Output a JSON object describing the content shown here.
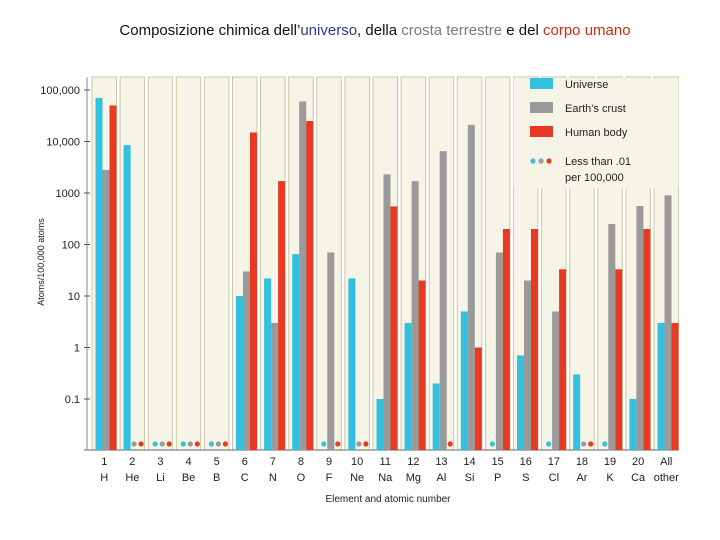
{
  "title": {
    "part1": "Composizione chimica dell’",
    "universe": "universo",
    "part2": ", della ",
    "crust": "crosta terrestre",
    "part3": " e del ",
    "body": "corpo umano"
  },
  "chart_data": {
    "type": "bar",
    "scale": "log",
    "ylabel": "Atoms/100,000 atoms",
    "xlabel": "Element and atomic number",
    "yticks": [
      {
        "value": 100000,
        "label": "100,000"
      },
      {
        "value": 10000,
        "label": "10,000"
      },
      {
        "value": 1000,
        "label": "1000"
      },
      {
        "value": 100,
        "label": "100"
      },
      {
        "value": 10,
        "label": "10"
      },
      {
        "value": 1,
        "label": "1"
      },
      {
        "value": 0.1,
        "label": "0.1"
      }
    ],
    "categories": [
      {
        "num": "1",
        "sym": "H"
      },
      {
        "num": "2",
        "sym": "He"
      },
      {
        "num": "3",
        "sym": "Li"
      },
      {
        "num": "4",
        "sym": "Be"
      },
      {
        "num": "5",
        "sym": "B"
      },
      {
        "num": "6",
        "sym": "C"
      },
      {
        "num": "7",
        "sym": "N"
      },
      {
        "num": "8",
        "sym": "O"
      },
      {
        "num": "9",
        "sym": "F"
      },
      {
        "num": "10",
        "sym": "Ne"
      },
      {
        "num": "11",
        "sym": "Na"
      },
      {
        "num": "12",
        "sym": "Mg"
      },
      {
        "num": "13",
        "sym": "Al"
      },
      {
        "num": "14",
        "sym": "Si"
      },
      {
        "num": "15",
        "sym": "P"
      },
      {
        "num": "16",
        "sym": "S"
      },
      {
        "num": "17",
        "sym": "Cl"
      },
      {
        "num": "18",
        "sym": "Ar"
      },
      {
        "num": "19",
        "sym": "K"
      },
      {
        "num": "20",
        "sym": "Ca"
      },
      {
        "num": "All",
        "sym": "other"
      }
    ],
    "series": [
      {
        "name": "Universe",
        "color": "#33c1e0",
        "values": [
          70000,
          8500,
          null,
          null,
          null,
          10,
          22,
          65,
          null,
          22,
          0.1,
          3,
          0.2,
          5,
          null,
          0.7,
          null,
          0.3,
          null,
          0.1,
          3
        ]
      },
      {
        "name": "Earth's crust",
        "color": "#9a9a9a",
        "values": [
          2800,
          null,
          null,
          null,
          null,
          30,
          3,
          60000,
          70,
          null,
          2300,
          1700,
          6500,
          21000,
          70,
          20,
          5,
          null,
          250,
          560,
          900
        ]
      },
      {
        "name": "Human body",
        "color": "#e83a22",
        "values": [
          50000,
          null,
          null,
          null,
          null,
          15000,
          1700,
          25000,
          null,
          null,
          550,
          20,
          null,
          1,
          200,
          200,
          33,
          null,
          33,
          200,
          3
        ]
      }
    ],
    "less_than_legend": "Less than .01 per 100,000",
    "legend_position": "top-right"
  }
}
